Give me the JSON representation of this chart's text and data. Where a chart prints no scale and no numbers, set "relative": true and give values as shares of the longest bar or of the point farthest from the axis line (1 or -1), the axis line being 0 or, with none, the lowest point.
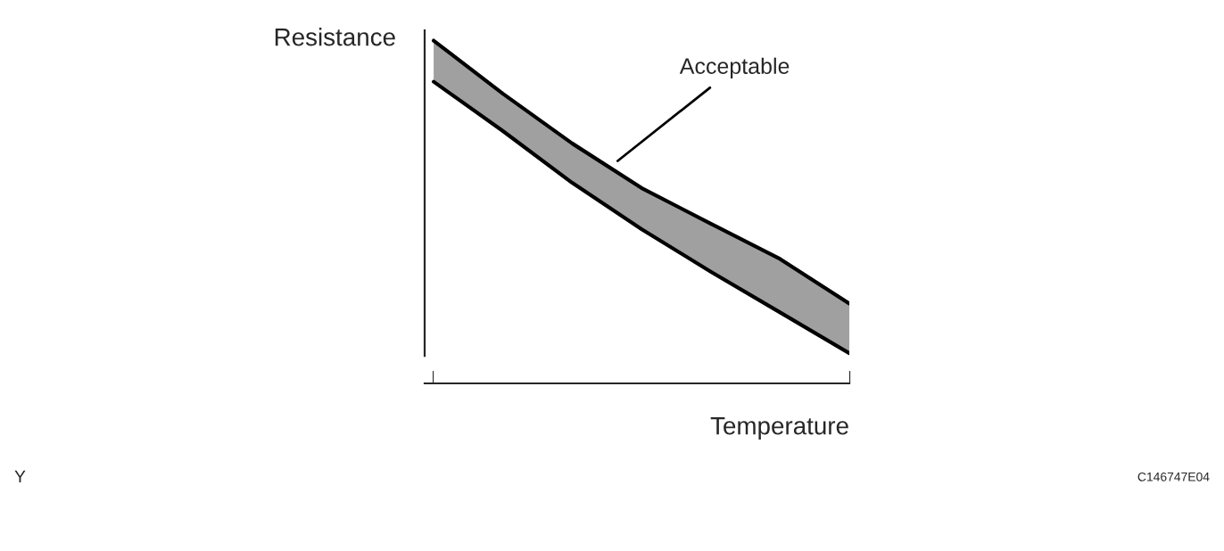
{
  "chart_data": {
    "type": "area",
    "stacked": true,
    "relative": true,
    "xlabel": "Temperature",
    "ylabel": "Resistance",
    "categories": [
      null,
      null,
      null,
      null,
      null,
      null,
      null
    ],
    "series": [
      {
        "color": "#ffffff",
        "values": [
          0.88,
          0.736,
          0.585,
          0.45,
          0.326,
          0.207,
          0.088
        ]
      },
      {
        "color": "#a0a0a0",
        "values": [
          0.12,
          0.109,
          0.115,
          0.12,
          0.14,
          0.156,
          0.145
        ]
      }
    ],
    "annotations": [
      "Acceptable",
      "Y",
      "C146747E04"
    ],
    "grid": false,
    "legend": false
  }
}
